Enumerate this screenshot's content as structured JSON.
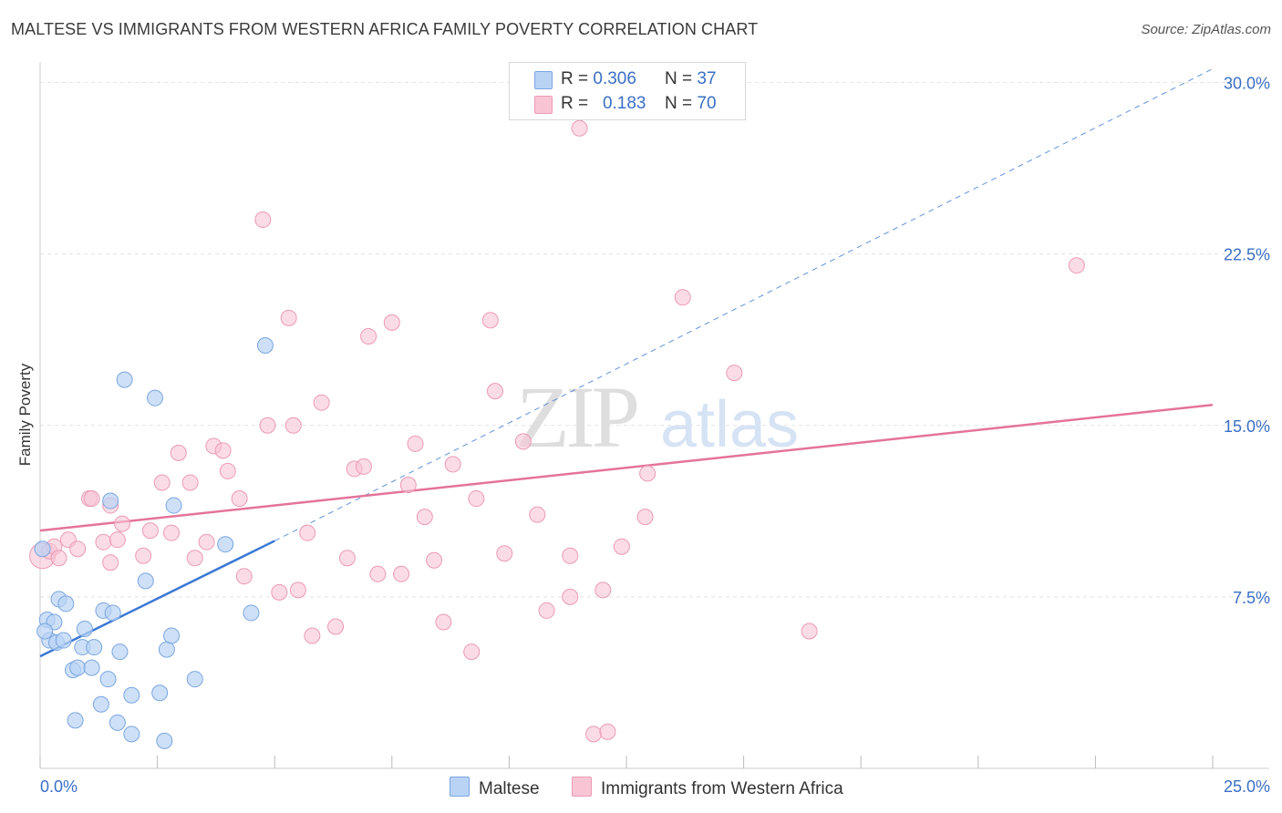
{
  "header": {
    "title": "MALTESE VS IMMIGRANTS FROM WESTERN AFRICA FAMILY POVERTY CORRELATION CHART",
    "source": "Source: ZipAtlas.com"
  },
  "legend": {
    "series1": {
      "r_label": "R =",
      "r_value": "0.306",
      "n_label": "N =",
      "n_value": "37"
    },
    "series2": {
      "r_label": "R =",
      "r_value": "0.183",
      "n_label": "N =",
      "n_value": "70"
    }
  },
  "watermark": {
    "zip": "ZIP",
    "atlas": "atlas"
  },
  "colors": {
    "maltese_fill": "#b9d3f5",
    "maltese_stroke": "#7aa6e0",
    "maltese_line": "#3a78d4",
    "wa_fill": "#f9c5d5",
    "wa_stroke": "#ec9ab4",
    "wa_line": "#e4739a",
    "axis_text": "#3a6fc4",
    "grid": "#e4e4e4"
  },
  "chart_data": {
    "type": "scatter",
    "title": "MALTESE VS IMMIGRANTS FROM WESTERN AFRICA FAMILY POVERTY CORRELATION CHART",
    "xlabel": "",
    "ylabel": "Family Poverty",
    "xlim": [
      0,
      25
    ],
    "ylim": [
      0,
      30.5
    ],
    "x_tick_labels": [
      "0.0%",
      "25.0%"
    ],
    "y_ticks": [
      7.5,
      15.0,
      22.5,
      30.0
    ],
    "y_tick_labels": [
      "7.5%",
      "15.0%",
      "22.5%",
      "30.0%"
    ],
    "grid": true,
    "legend_position": "top-center",
    "series": [
      {
        "name": "Maltese",
        "R": 0.306,
        "N": 37,
        "points": [
          [
            0.05,
            9.6
          ],
          [
            0.15,
            6.5
          ],
          [
            0.2,
            5.6
          ],
          [
            0.3,
            6.4
          ],
          [
            0.35,
            5.5
          ],
          [
            0.4,
            7.4
          ],
          [
            0.5,
            5.6
          ],
          [
            0.55,
            7.2
          ],
          [
            0.7,
            4.3
          ],
          [
            0.75,
            2.1
          ],
          [
            0.8,
            4.4
          ],
          [
            0.9,
            5.3
          ],
          [
            0.95,
            6.1
          ],
          [
            1.1,
            4.4
          ],
          [
            1.15,
            5.3
          ],
          [
            1.3,
            2.8
          ],
          [
            1.35,
            6.9
          ],
          [
            1.45,
            3.9
          ],
          [
            1.5,
            11.7
          ],
          [
            1.55,
            6.8
          ],
          [
            1.65,
            2.0
          ],
          [
            1.7,
            5.1
          ],
          [
            1.8,
            17.0
          ],
          [
            1.95,
            3.2
          ],
          [
            1.95,
            1.5
          ],
          [
            2.25,
            8.2
          ],
          [
            2.45,
            16.2
          ],
          [
            2.55,
            3.3
          ],
          [
            2.65,
            1.2
          ],
          [
            2.7,
            5.2
          ],
          [
            2.8,
            5.8
          ],
          [
            2.85,
            11.5
          ],
          [
            3.3,
            3.9
          ],
          [
            3.95,
            9.8
          ],
          [
            4.5,
            6.8
          ],
          [
            4.8,
            18.5
          ],
          [
            0.1,
            6.0
          ]
        ],
        "trend": {
          "x": [
            0,
            5.0
          ],
          "y": [
            4.9,
            9.95
          ],
          "extended_to": [
            25.0,
            30.6
          ]
        }
      },
      {
        "name": "Immigrants from Western Africa",
        "R": 0.183,
        "N": 70,
        "points": [
          [
            0.05,
            9.3
          ],
          [
            0.2,
            9.5
          ],
          [
            0.3,
            9.7
          ],
          [
            0.4,
            9.2
          ],
          [
            0.6,
            10.0
          ],
          [
            0.8,
            9.6
          ],
          [
            1.05,
            11.8
          ],
          [
            1.1,
            11.8
          ],
          [
            1.35,
            9.9
          ],
          [
            1.5,
            11.5
          ],
          [
            1.5,
            9.0
          ],
          [
            1.65,
            10.0
          ],
          [
            1.75,
            10.7
          ],
          [
            2.2,
            9.3
          ],
          [
            2.35,
            10.4
          ],
          [
            2.6,
            12.5
          ],
          [
            2.8,
            10.3
          ],
          [
            2.95,
            13.8
          ],
          [
            3.2,
            12.5
          ],
          [
            3.3,
            9.2
          ],
          [
            3.55,
            9.9
          ],
          [
            3.7,
            14.1
          ],
          [
            3.9,
            13.9
          ],
          [
            4.0,
            13.0
          ],
          [
            4.25,
            11.8
          ],
          [
            4.35,
            8.4
          ],
          [
            4.75,
            24.0
          ],
          [
            4.85,
            15.0
          ],
          [
            5.1,
            7.7
          ],
          [
            5.3,
            19.7
          ],
          [
            5.4,
            15.0
          ],
          [
            5.5,
            7.8
          ],
          [
            5.7,
            10.3
          ],
          [
            5.8,
            5.8
          ],
          [
            6.0,
            16.0
          ],
          [
            6.3,
            6.2
          ],
          [
            6.55,
            9.2
          ],
          [
            6.7,
            13.1
          ],
          [
            6.9,
            13.2
          ],
          [
            7.0,
            18.9
          ],
          [
            7.2,
            8.5
          ],
          [
            7.5,
            19.5
          ],
          [
            7.7,
            8.5
          ],
          [
            7.85,
            12.4
          ],
          [
            8.0,
            14.2
          ],
          [
            8.2,
            11.0
          ],
          [
            8.4,
            9.1
          ],
          [
            8.6,
            6.4
          ],
          [
            8.8,
            13.3
          ],
          [
            9.2,
            5.1
          ],
          [
            9.3,
            11.8
          ],
          [
            9.6,
            19.6
          ],
          [
            9.7,
            16.5
          ],
          [
            9.9,
            9.4
          ],
          [
            10.3,
            14.3
          ],
          [
            10.6,
            11.1
          ],
          [
            10.8,
            6.9
          ],
          [
            11.3,
            9.3
          ],
          [
            11.3,
            7.5
          ],
          [
            11.5,
            28.0
          ],
          [
            11.8,
            1.5
          ],
          [
            12.0,
            7.8
          ],
          [
            12.1,
            1.6
          ],
          [
            12.4,
            9.7
          ],
          [
            12.9,
            11.0
          ],
          [
            12.95,
            12.9
          ],
          [
            13.7,
            20.6
          ],
          [
            14.8,
            17.3
          ],
          [
            16.4,
            6.0
          ],
          [
            22.1,
            22.0
          ]
        ],
        "trend": {
          "x": [
            0,
            25.0
          ],
          "y": [
            10.4,
            15.9
          ]
        }
      }
    ]
  },
  "bottom_legend": {
    "item1": "Maltese",
    "item2": "Immigrants from Western Africa"
  },
  "axis": {
    "x_min_label": "0.0%",
    "x_max_label": "25.0%",
    "y_title": "Family Poverty"
  }
}
